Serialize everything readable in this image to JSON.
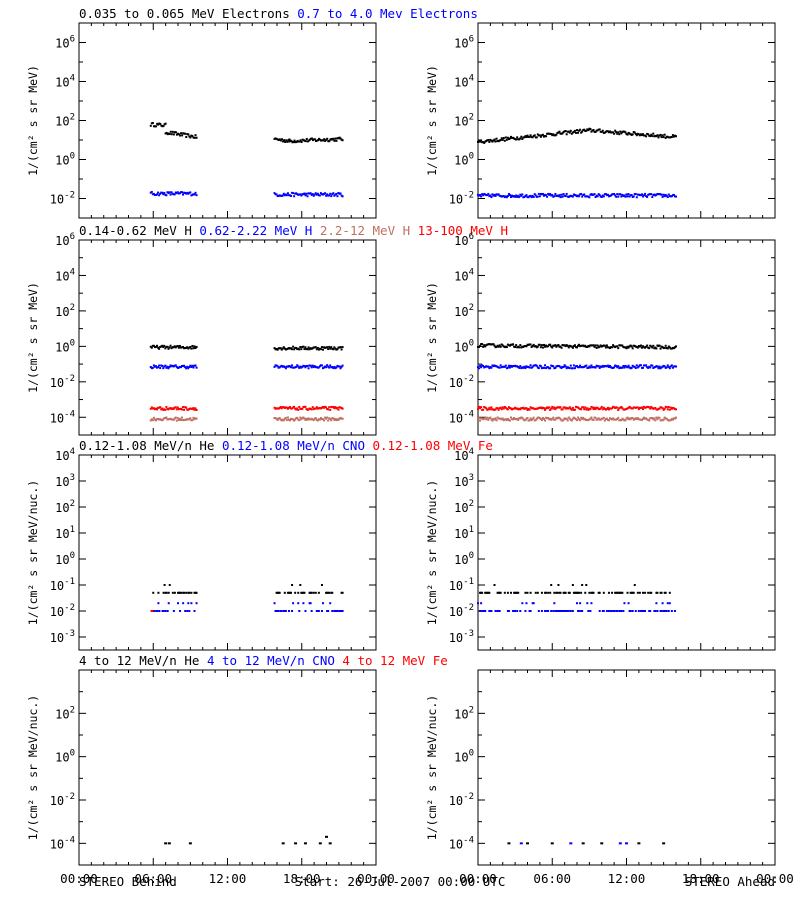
{
  "colors": {
    "black": "#000000",
    "blue": "#0000ff",
    "salmon": "#c07060",
    "red": "#ff0000"
  },
  "rows": [
    {
      "legend": [
        {
          "text": "0.035 to 0.065 MeV Electrons",
          "color": "#000000"
        },
        {
          "text": "0.7 to 4.0 Mev Electrons",
          "color": "#0000ff"
        }
      ],
      "ylabel": "1/(cm² s sr MeV)",
      "ylog": [
        -3,
        7
      ],
      "yticks": [
        {
          "exp": 6,
          "label": "10^6"
        },
        {
          "exp": 4,
          "label": "10^4"
        },
        {
          "exp": 2,
          "label": "10^2"
        },
        {
          "exp": 0,
          "label": "10^0"
        },
        {
          "exp": -2,
          "label": "10^-2"
        }
      ]
    },
    {
      "legend": [
        {
          "text": "0.14-0.62 MeV H",
          "color": "#000000"
        },
        {
          "text": "0.62-2.22 MeV H",
          "color": "#0000ff"
        },
        {
          "text": "2.2-12 MeV H",
          "color": "#c07060"
        },
        {
          "text": "13-100 MeV H",
          "color": "#ff0000"
        }
      ],
      "ylabel": "1/(cm² s sr MeV)",
      "ylog": [
        -5,
        6
      ],
      "yticks": [
        {
          "exp": 6,
          "label": "10^6"
        },
        {
          "exp": 4,
          "label": "10^4"
        },
        {
          "exp": 2,
          "label": "10^2"
        },
        {
          "exp": 0,
          "label": "10^0"
        },
        {
          "exp": -2,
          "label": "10^-2"
        },
        {
          "exp": -4,
          "label": "10^-4"
        }
      ]
    },
    {
      "legend": [
        {
          "text": "0.12-1.08 MeV/n He",
          "color": "#000000"
        },
        {
          "text": "0.12-1.08 MeV/n CNO",
          "color": "#0000ff"
        },
        {
          "text": "0.12-1.08 MeV Fe",
          "color": "#ff0000"
        }
      ],
      "ylabel": "1/(cm² s sr MeV/nuc.)",
      "ylog": [
        -3.5,
        4
      ],
      "yticks": [
        {
          "exp": 4,
          "label": "10^4"
        },
        {
          "exp": 3,
          "label": "10^3"
        },
        {
          "exp": 2,
          "label": "10^2"
        },
        {
          "exp": 1,
          "label": "10^1"
        },
        {
          "exp": 0,
          "label": "10^0"
        },
        {
          "exp": -1,
          "label": "10^-1"
        },
        {
          "exp": -2,
          "label": "10^-2"
        },
        {
          "exp": -3,
          "label": "10^-3"
        }
      ]
    },
    {
      "legend": [
        {
          "text": "4 to 12 MeV/n He",
          "color": "#000000"
        },
        {
          "text": "4 to 12 MeV/n CNO",
          "color": "#0000ff"
        },
        {
          "text": "4 to 12 MeV Fe",
          "color": "#ff0000"
        }
      ],
      "ylabel": "1/(cm² s sr MeV/nuc.)",
      "ylog": [
        -5,
        4
      ],
      "yticks": [
        {
          "exp": 2,
          "label": "10^2"
        },
        {
          "exp": 0,
          "label": "10^0"
        },
        {
          "exp": -2,
          "label": "10^-2"
        },
        {
          "exp": -4,
          "label": "10^-4"
        }
      ]
    }
  ],
  "xticks": [
    "00:00",
    "06:00",
    "12:00",
    "18:00",
    "00:00"
  ],
  "footer": {
    "left": "STEREO Behind",
    "center": "Start: 26-Jul-2007 00:00 UTC",
    "right": "STEREO Ahead"
  },
  "chart_data": {
    "type": "scatter",
    "x_unit": "hours since start",
    "x_range": [
      0,
      24
    ],
    "y_scale": "log",
    "panels": [
      {
        "spacecraft": "STEREO Behind",
        "row": 0,
        "series": [
          {
            "name": "0.035 to 0.065 MeV Electrons",
            "color": "#000000",
            "segments": [
              {
                "x_range": [
                  5.8,
                  7.0
                ],
                "log10_y": [
                  1.8,
                  1.75
                ]
              },
              {
                "x_range": [
                  7.0,
                  9.5
                ],
                "log10_y": [
                  1.4,
                  1.15
                ]
              },
              {
                "x_range": [
                  15.8,
                  17.0
                ],
                "log10_y": [
                  1.05,
                  0.95
                ]
              },
              {
                "x_range": [
                  17.0,
                  21.3
                ],
                "log10_y": [
                  0.95,
                  1.05
                ]
              }
            ]
          },
          {
            "name": "0.7 to 4.0 Mev Electrons",
            "color": "#0000ff",
            "segments": [
              {
                "x_range": [
                  5.8,
                  9.5
                ],
                "log10_y": [
                  -1.75,
                  -1.75
                ]
              },
              {
                "x_range": [
                  15.8,
                  21.3
                ],
                "log10_y": [
                  -1.8,
                  -1.8
                ]
              }
            ]
          }
        ]
      },
      {
        "spacecraft": "STEREO Ahead",
        "row": 0,
        "series": [
          {
            "name": "0.035 to 0.065 MeV Electrons",
            "color": "#000000",
            "segments": [
              {
                "x_range": [
                  0.0,
                  9.0
                ],
                "log10_y": [
                  0.9,
                  1.5
                ]
              },
              {
                "x_range": [
                  9.0,
                  16.0
                ],
                "log10_y": [
                  1.5,
                  1.15
                ]
              }
            ]
          },
          {
            "name": "0.7 to 4.0 Mev Electrons",
            "color": "#0000ff",
            "segments": [
              {
                "x_range": [
                  0.0,
                  16.0
                ],
                "log10_y": [
                  -1.85,
                  -1.85
                ]
              }
            ]
          }
        ]
      },
      {
        "spacecraft": "STEREO Behind",
        "row": 1,
        "series": [
          {
            "name": "0.14-0.62 MeV H",
            "color": "#000000",
            "segments": [
              {
                "x_range": [
                  5.8,
                  9.5
                ],
                "log10_y": [
                  -0.05,
                  -0.05
                ]
              },
              {
                "x_range": [
                  15.8,
                  21.3
                ],
                "log10_y": [
                  -0.1,
                  -0.1
                ]
              }
            ]
          },
          {
            "name": "0.62-2.22 MeV H",
            "color": "#0000ff",
            "segments": [
              {
                "x_range": [
                  5.8,
                  9.5
                ],
                "log10_y": [
                  -1.15,
                  -1.15
                ]
              },
              {
                "x_range": [
                  15.8,
                  21.3
                ],
                "log10_y": [
                  -1.15,
                  -1.15
                ]
              }
            ]
          },
          {
            "name": "2.2-12 MeV H",
            "color": "#c07060",
            "segments": [
              {
                "x_range": [
                  5.8,
                  9.5
                ],
                "log10_y": [
                  -4.1,
                  -4.1
                ]
              },
              {
                "x_range": [
                  15.8,
                  21.3
                ],
                "log10_y": [
                  -4.1,
                  -4.1
                ]
              }
            ]
          },
          {
            "name": "13-100 MeV H",
            "color": "#ff0000",
            "segments": [
              {
                "x_range": [
                  5.8,
                  9.5
                ],
                "log10_y": [
                  -3.5,
                  -3.5
                ]
              },
              {
                "x_range": [
                  15.8,
                  21.3
                ],
                "log10_y": [
                  -3.5,
                  -3.5
                ]
              }
            ]
          }
        ]
      },
      {
        "spacecraft": "STEREO Ahead",
        "row": 1,
        "series": [
          {
            "name": "0.14-0.62 MeV H",
            "color": "#000000",
            "segments": [
              {
                "x_range": [
                  0.0,
                  16.0
                ],
                "log10_y": [
                  0.05,
                  -0.05
                ]
              }
            ]
          },
          {
            "name": "0.62-2.22 MeV H",
            "color": "#0000ff",
            "segments": [
              {
                "x_range": [
                  0.0,
                  16.0
                ],
                "log10_y": [
                  -1.15,
                  -1.15
                ]
              }
            ]
          },
          {
            "name": "2.2-12 MeV H",
            "color": "#c07060",
            "segments": [
              {
                "x_range": [
                  0.0,
                  16.0
                ],
                "log10_y": [
                  -4.1,
                  -4.1
                ]
              }
            ]
          },
          {
            "name": "13-100 MeV H",
            "color": "#ff0000",
            "segments": [
              {
                "x_range": [
                  0.0,
                  16.0
                ],
                "log10_y": [
                  -3.5,
                  -3.5
                ]
              }
            ]
          }
        ]
      },
      {
        "spacecraft": "STEREO Behind",
        "row": 2,
        "series": [
          {
            "name": "0.12-1.08 MeV/n He",
            "color": "#000000",
            "segments": [
              {
                "x_range": [
                  6.0,
                  9.5
                ],
                "log10_y": [
                  -1.3,
                  -1.3
                ]
              },
              {
                "x_range": [
                  15.8,
                  21.3
                ],
                "log10_y": [
                  -1.3,
                  -1.3
                ]
              }
            ]
          },
          {
            "name": "0.12-1.08 MeV/n CNO",
            "color": "#0000ff",
            "segments": [
              {
                "x_range": [
                  6.0,
                  9.5
                ],
                "log10_y": [
                  -2.0,
                  -2.0
                ]
              },
              {
                "x_range": [
                  15.8,
                  21.3
                ],
                "log10_y": [
                  -2.0,
                  -2.0
                ]
              }
            ]
          },
          {
            "name": "0.12-1.08 MeV Fe",
            "color": "#ff0000",
            "points": [
              {
                "x": 5.9,
                "log10_y": -2.0
              }
            ]
          }
        ]
      },
      {
        "spacecraft": "STEREO Ahead",
        "row": 2,
        "series": [
          {
            "name": "0.12-1.08 MeV/n He",
            "color": "#000000",
            "segments": [
              {
                "x_range": [
                  0.0,
                  15.5
                ],
                "log10_y": [
                  -1.3,
                  -1.3
                ]
              }
            ]
          },
          {
            "name": "0.12-1.08 MeV/n CNO",
            "color": "#0000ff",
            "segments": [
              {
                "x_range": [
                  0.0,
                  16.0
                ],
                "log10_y": [
                  -2.0,
                  -2.0
                ]
              }
            ]
          }
        ]
      },
      {
        "spacecraft": "STEREO Behind",
        "row": 3,
        "series": [
          {
            "name": "4 to 12 MeV/n He",
            "color": "#000000",
            "points": [
              {
                "x": 7.0,
                "log10_y": -4.0
              },
              {
                "x": 7.3,
                "log10_y": -4.0
              },
              {
                "x": 9.0,
                "log10_y": -4.0
              },
              {
                "x": 16.5,
                "log10_y": -4.0
              },
              {
                "x": 17.5,
                "log10_y": -4.0
              },
              {
                "x": 18.3,
                "log10_y": -4.0
              },
              {
                "x": 19.5,
                "log10_y": -4.0
              },
              {
                "x": 20.0,
                "log10_y": -3.7
              },
              {
                "x": 20.3,
                "log10_y": -4.0
              }
            ]
          }
        ]
      },
      {
        "spacecraft": "STEREO Ahead",
        "row": 3,
        "series": [
          {
            "name": "4 to 12 MeV/n He",
            "color": "#000000",
            "points": [
              {
                "x": 2.5,
                "log10_y": -4.0
              },
              {
                "x": 4.0,
                "log10_y": -4.0
              },
              {
                "x": 6.0,
                "log10_y": -4.0
              },
              {
                "x": 8.5,
                "log10_y": -4.0
              },
              {
                "x": 10.0,
                "log10_y": -4.0
              },
              {
                "x": 13.0,
                "log10_y": -4.0
              },
              {
                "x": 15.0,
                "log10_y": -4.0
              }
            ]
          },
          {
            "name": "4 to 12 MeV/n CNO",
            "color": "#0000ff",
            "points": [
              {
                "x": 3.5,
                "log10_y": -4.0
              },
              {
                "x": 7.5,
                "log10_y": -4.0
              },
              {
                "x": 11.5,
                "log10_y": -4.0
              },
              {
                "x": 12.0,
                "log10_y": -4.0
              }
            ]
          }
        ]
      }
    ]
  }
}
